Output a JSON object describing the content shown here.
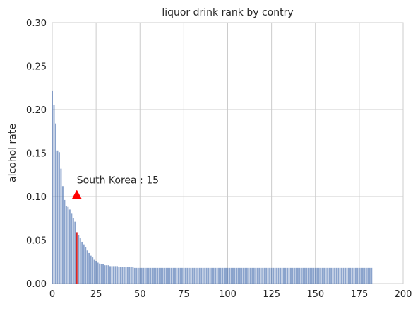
{
  "chart_data": {
    "type": "bar",
    "title": "liquor drink rank by contry",
    "xlabel": "",
    "ylabel": "alcohol rate",
    "xlim": [
      0,
      200
    ],
    "ylim": [
      0,
      0.3
    ],
    "xticks": [
      0,
      25,
      50,
      75,
      100,
      125,
      150,
      175,
      200
    ],
    "yticks": [
      0.0,
      0.05,
      0.1,
      0.15,
      0.2,
      0.25,
      0.3
    ],
    "ytick_labels": [
      "0.00",
      "0.05",
      "0.10",
      "0.15",
      "0.20",
      "0.25",
      "0.30"
    ],
    "grid": true,
    "bar_color": "#4c72b0",
    "highlight_color": "#d62728",
    "highlight_index": 14,
    "annotation": {
      "text": "South Korea : 15",
      "marker": "triangle",
      "marker_color": "#ff0000",
      "marker_x": 14,
      "marker_y": 0.102,
      "text_x": 14,
      "text_y": 0.11
    },
    "values": [
      0.222,
      0.205,
      0.184,
      0.153,
      0.151,
      0.132,
      0.112,
      0.096,
      0.089,
      0.088,
      0.085,
      0.081,
      0.075,
      0.071,
      0.059,
      0.056,
      0.052,
      0.048,
      0.045,
      0.042,
      0.038,
      0.035,
      0.032,
      0.03,
      0.028,
      0.026,
      0.024,
      0.023,
      0.022,
      0.022,
      0.021,
      0.021,
      0.021,
      0.02,
      0.02,
      0.02,
      0.02,
      0.02,
      0.019,
      0.019,
      0.019,
      0.019,
      0.019,
      0.019,
      0.019,
      0.019,
      0.019,
      0.018,
      0.018,
      0.018,
      0.018,
      0.018,
      0.018,
      0.018,
      0.018,
      0.018,
      0.018,
      0.018,
      0.018,
      0.018,
      0.018,
      0.018,
      0.018,
      0.018,
      0.018,
      0.018,
      0.018,
      0.018,
      0.018,
      0.018,
      0.018,
      0.018,
      0.018,
      0.018,
      0.018,
      0.018,
      0.018,
      0.018,
      0.018,
      0.018,
      0.018,
      0.018,
      0.018,
      0.018,
      0.018,
      0.018,
      0.018,
      0.018,
      0.018,
      0.018,
      0.018,
      0.018,
      0.018,
      0.018,
      0.018,
      0.018,
      0.018,
      0.018,
      0.018,
      0.018,
      0.018,
      0.018,
      0.018,
      0.018,
      0.018,
      0.018,
      0.018,
      0.018,
      0.018,
      0.018,
      0.018,
      0.018,
      0.018,
      0.018,
      0.018,
      0.018,
      0.018,
      0.018,
      0.018,
      0.018,
      0.018,
      0.018,
      0.018,
      0.018,
      0.018,
      0.018,
      0.018,
      0.018,
      0.018,
      0.018,
      0.018,
      0.018,
      0.018,
      0.018,
      0.018,
      0.018,
      0.018,
      0.018,
      0.018,
      0.018,
      0.018,
      0.018,
      0.018,
      0.018,
      0.018,
      0.018,
      0.018,
      0.018,
      0.018,
      0.018,
      0.018,
      0.018,
      0.018,
      0.018,
      0.018,
      0.018,
      0.018,
      0.018,
      0.018,
      0.018,
      0.018,
      0.018,
      0.018,
      0.018,
      0.018,
      0.018,
      0.018,
      0.018,
      0.018,
      0.018,
      0.018,
      0.018,
      0.018,
      0.018,
      0.018,
      0.018,
      0.018,
      0.018,
      0.018,
      0.018,
      0.018,
      0.018,
      0.018
    ]
  }
}
